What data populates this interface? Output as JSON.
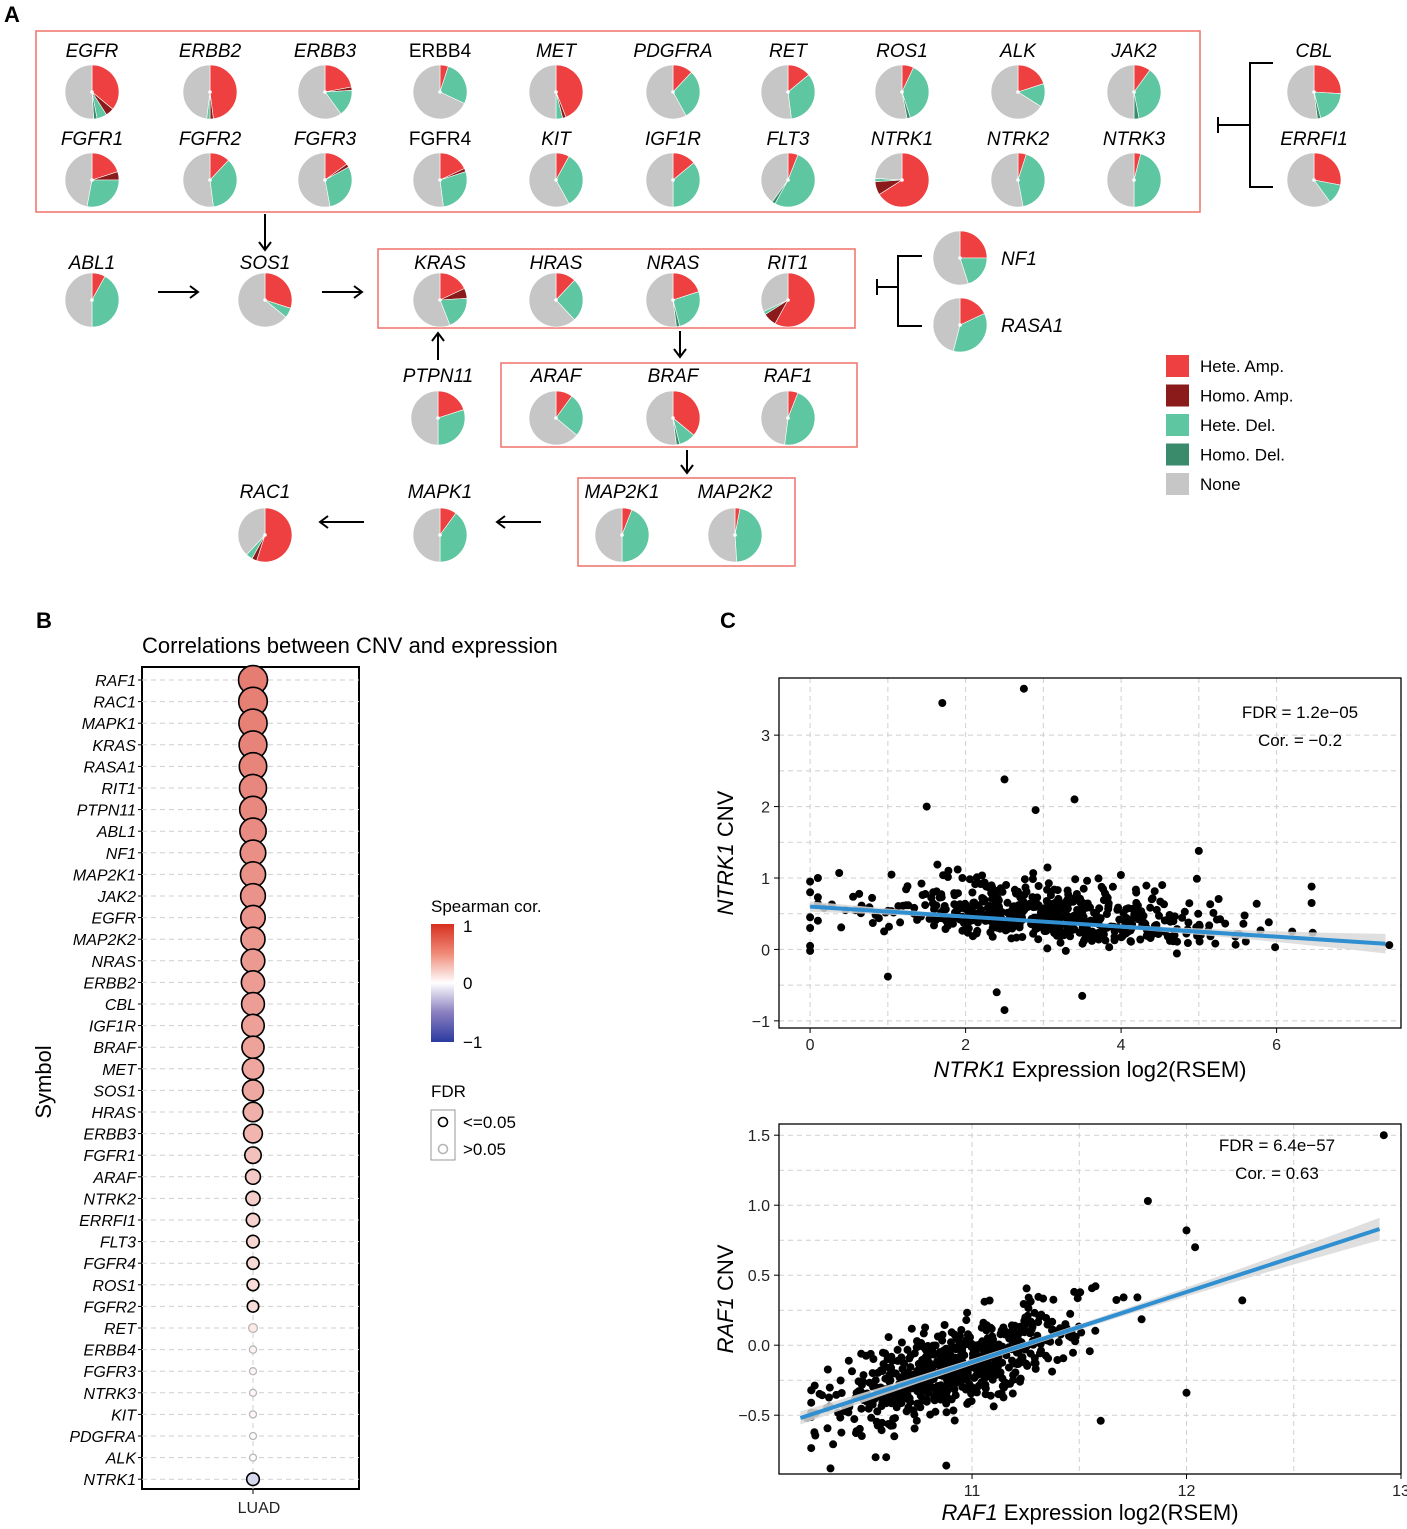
{
  "panels": {
    "a": "A",
    "b": "B",
    "c": "C"
  },
  "colors": {
    "hete_amp": "#ee4040",
    "homo_amp": "#8b1a1a",
    "hete_del": "#5fc6a2",
    "homo_del": "#3a8a6c",
    "none": "#c6c6c6",
    "box": "#f07a72",
    "reg_line": "#2f8fd1",
    "reg_band": "#d9d9d9"
  },
  "pie_legend": [
    {
      "key": "hete_amp",
      "label": "Hete. Amp."
    },
    {
      "key": "homo_amp",
      "label": "Homo. Amp."
    },
    {
      "key": "hete_del",
      "label": "Hete. Del."
    },
    {
      "key": "homo_del",
      "label": "Homo. Del."
    },
    {
      "key": "none",
      "label": "None"
    }
  ],
  "genes": [
    {
      "name": "EGFR",
      "italic": true,
      "fractions": [
        0.36,
        0.05,
        0.06,
        0.02,
        0.51
      ]
    },
    {
      "name": "ERBB2",
      "italic": true,
      "fractions": [
        0.48,
        0.02,
        0.02,
        0.0,
        0.48
      ]
    },
    {
      "name": "ERBB3",
      "italic": true,
      "fractions": [
        0.22,
        0.02,
        0.16,
        0.0,
        0.6
      ]
    },
    {
      "name": "ERBB4",
      "italic": false,
      "fractions": [
        0.05,
        0.0,
        0.27,
        0.0,
        0.68
      ]
    },
    {
      "name": "MET",
      "italic": true,
      "fractions": [
        0.44,
        0.02,
        0.04,
        0.0,
        0.5
      ]
    },
    {
      "name": "PDGFRA",
      "italic": true,
      "fractions": [
        0.12,
        0.0,
        0.3,
        0.0,
        0.58
      ]
    },
    {
      "name": "RET",
      "italic": true,
      "fractions": [
        0.14,
        0.0,
        0.34,
        0.0,
        0.52
      ]
    },
    {
      "name": "ROS1",
      "italic": true,
      "fractions": [
        0.07,
        0.0,
        0.38,
        0.02,
        0.53
      ]
    },
    {
      "name": "ALK",
      "italic": true,
      "fractions": [
        0.2,
        0.0,
        0.14,
        0.0,
        0.66
      ]
    },
    {
      "name": "JAK2",
      "italic": true,
      "fractions": [
        0.1,
        0.0,
        0.37,
        0.03,
        0.5
      ]
    },
    {
      "name": "FGFR1",
      "italic": true,
      "fractions": [
        0.2,
        0.05,
        0.28,
        0.0,
        0.47
      ]
    },
    {
      "name": "FGFR2",
      "italic": true,
      "fractions": [
        0.12,
        0.0,
        0.36,
        0.0,
        0.52
      ]
    },
    {
      "name": "FGFR3",
      "italic": true,
      "fractions": [
        0.15,
        0.02,
        0.3,
        0.0,
        0.53
      ]
    },
    {
      "name": "FGFR4",
      "italic": false,
      "fractions": [
        0.18,
        0.02,
        0.28,
        0.0,
        0.52
      ]
    },
    {
      "name": "KIT",
      "italic": true,
      "fractions": [
        0.08,
        0.0,
        0.34,
        0.0,
        0.58
      ]
    },
    {
      "name": "IGF1R",
      "italic": true,
      "fractions": [
        0.14,
        0.0,
        0.36,
        0.0,
        0.5
      ]
    },
    {
      "name": "FLT3",
      "italic": true,
      "fractions": [
        0.06,
        0.0,
        0.52,
        0.02,
        0.4
      ]
    },
    {
      "name": "NTRK1",
      "italic": true,
      "fractions": [
        0.66,
        0.08,
        0.02,
        0.0,
        0.24
      ]
    },
    {
      "name": "NTRK2",
      "italic": true,
      "fractions": [
        0.05,
        0.0,
        0.42,
        0.0,
        0.53
      ]
    },
    {
      "name": "NTRK3",
      "italic": true,
      "fractions": [
        0.04,
        0.0,
        0.46,
        0.0,
        0.5
      ]
    },
    {
      "name": "CBL",
      "italic": true,
      "fractions": [
        0.26,
        0.0,
        0.2,
        0.02,
        0.52
      ]
    },
    {
      "name": "ERRFI1",
      "italic": true,
      "fractions": [
        0.28,
        0.0,
        0.12,
        0.0,
        0.6
      ]
    },
    {
      "name": "ABL1",
      "italic": true,
      "fractions": [
        0.08,
        0.0,
        0.42,
        0.0,
        0.5
      ]
    },
    {
      "name": "SOS1",
      "italic": true,
      "fractions": [
        0.3,
        0.0,
        0.06,
        0.0,
        0.64
      ]
    },
    {
      "name": "KRAS",
      "italic": true,
      "fractions": [
        0.18,
        0.06,
        0.2,
        0.0,
        0.56
      ]
    },
    {
      "name": "HRAS",
      "italic": true,
      "fractions": [
        0.12,
        0.0,
        0.26,
        0.0,
        0.62
      ]
    },
    {
      "name": "NRAS",
      "italic": true,
      "fractions": [
        0.2,
        0.0,
        0.26,
        0.02,
        0.52
      ]
    },
    {
      "name": "RIT1",
      "italic": true,
      "fractions": [
        0.58,
        0.08,
        0.02,
        0.0,
        0.32
      ]
    },
    {
      "name": "NF1",
      "italic": true,
      "fractions": [
        0.25,
        0.0,
        0.2,
        0.0,
        0.55
      ]
    },
    {
      "name": "RASA1",
      "italic": true,
      "fractions": [
        0.18,
        0.0,
        0.36,
        0.0,
        0.46
      ]
    },
    {
      "name": "PTPN11",
      "italic": true,
      "fractions": [
        0.2,
        0.0,
        0.3,
        0.0,
        0.5
      ]
    },
    {
      "name": "ARAF",
      "italic": true,
      "fractions": [
        0.1,
        0.0,
        0.26,
        0.0,
        0.64
      ]
    },
    {
      "name": "BRAF",
      "italic": true,
      "fractions": [
        0.36,
        0.0,
        0.1,
        0.02,
        0.52
      ]
    },
    {
      "name": "RAF1",
      "italic": true,
      "fractions": [
        0.06,
        0.0,
        0.46,
        0.0,
        0.48
      ]
    },
    {
      "name": "MAP2K1",
      "italic": true,
      "fractions": [
        0.06,
        0.0,
        0.44,
        0.0,
        0.5
      ]
    },
    {
      "name": "MAP2K2",
      "italic": true,
      "fractions": [
        0.03,
        0.0,
        0.46,
        0.0,
        0.51
      ]
    },
    {
      "name": "MAPK1",
      "italic": true,
      "fractions": [
        0.1,
        0.0,
        0.4,
        0.0,
        0.5
      ]
    },
    {
      "name": "RAC1",
      "italic": true,
      "fractions": [
        0.55,
        0.03,
        0.04,
        0.0,
        0.38
      ]
    }
  ],
  "chart_data": [
    {
      "type": "scatter",
      "subtype": "bubble",
      "title": "Correlations between CNV and expression",
      "ylabel": "Symbol",
      "xlabel": "",
      "x_categories": [
        "LUAD"
      ],
      "symbols": [
        "RAF1",
        "RAC1",
        "MAPK1",
        "KRAS",
        "RASA1",
        "RIT1",
        "PTPN11",
        "ABL1",
        "NF1",
        "MAP2K1",
        "JAK2",
        "EGFR",
        "MAP2K2",
        "NRAS",
        "ERBB2",
        "CBL",
        "IGF1R",
        "BRAF",
        "MET",
        "SOS1",
        "HRAS",
        "ERBB3",
        "FGFR1",
        "ARAF",
        "NTRK2",
        "ERRFI1",
        "FLT3",
        "FGFR4",
        "ROS1",
        "FGFR2",
        "RET",
        "ERBB4",
        "FGFR3",
        "NTRK3",
        "KIT",
        "PDGFRA",
        "ALK",
        "NTRK1"
      ],
      "spearman_cor": [
        0.63,
        0.62,
        0.61,
        0.6,
        0.59,
        0.58,
        0.57,
        0.56,
        0.54,
        0.53,
        0.52,
        0.51,
        0.5,
        0.49,
        0.48,
        0.47,
        0.46,
        0.45,
        0.43,
        0.42,
        0.38,
        0.36,
        0.3,
        0.26,
        0.24,
        0.22,
        0.2,
        0.19,
        0.18,
        0.17,
        0.1,
        0.06,
        0.05,
        0.04,
        0.03,
        0.02,
        0.01,
        -0.2
      ],
      "fdr_significant": [
        true,
        true,
        true,
        true,
        true,
        true,
        true,
        true,
        true,
        true,
        true,
        true,
        true,
        true,
        true,
        true,
        true,
        true,
        true,
        true,
        true,
        true,
        true,
        true,
        true,
        true,
        true,
        true,
        true,
        true,
        false,
        false,
        false,
        false,
        false,
        false,
        false,
        true
      ],
      "colorbar": {
        "title": "Spearman cor.",
        "ticks": [
          "1",
          "0",
          "−1"
        ],
        "range": [
          -1,
          1
        ]
      },
      "size_legend": {
        "title": "FDR",
        "items": [
          "<=0.05",
          ">0.05"
        ]
      }
    },
    {
      "type": "scatter",
      "xlabel_gene": "NTRK1",
      "xlabel_rest": " Expression log2(RSEM)",
      "ylabel_gene": "NTRK1",
      "ylabel_rest": " CNV",
      "xlim": [
        -0.4,
        7.6
      ],
      "ylim": [
        -1.1,
        3.8
      ],
      "xticks": [
        "0",
        "2",
        "4",
        "6"
      ],
      "yticks": [
        "−1",
        "0",
        "1",
        "2",
        "3"
      ],
      "annotation": [
        "FDR = 1.2e−05",
        "Cor. = −0.2"
      ],
      "regression": {
        "x0": 0,
        "y0": 0.6,
        "x1": 7.4,
        "y1": 0.08
      },
      "highlight_points": [
        [
          1.7,
          3.45
        ],
        [
          2.75,
          3.65
        ],
        [
          2.5,
          2.38
        ],
        [
          3.4,
          2.1
        ],
        [
          1.5,
          2.0
        ],
        [
          2.9,
          1.95
        ],
        [
          5.0,
          1.38
        ],
        [
          6.45,
          0.88
        ],
        [
          6.45,
          0.65
        ],
        [
          0.0,
          0.95
        ],
        [
          0.0,
          0.8
        ],
        [
          0.0,
          0.45
        ],
        [
          0.0,
          0.3
        ],
        [
          0.0,
          0.05
        ],
        [
          0.0,
          -0.02
        ],
        [
          7.45,
          0.06
        ],
        [
          2.5,
          -0.85
        ],
        [
          2.4,
          -0.6
        ],
        [
          1.0,
          -0.38
        ],
        [
          3.5,
          -0.65
        ],
        [
          5.9,
          0.38
        ],
        [
          6.2,
          0.25
        ]
      ]
    },
    {
      "type": "scatter",
      "xlabel_gene": "RAF1",
      "xlabel_rest": " Expression log2(RSEM)",
      "ylabel_gene": "RAF1",
      "ylabel_rest": " CNV",
      "xlim": [
        10.1,
        13.0
      ],
      "ylim": [
        -0.92,
        1.58
      ],
      "xticks": [
        "11",
        "12",
        "13"
      ],
      "yticks": [
        "−0.5",
        "0.0",
        "0.5",
        "1.0",
        "1.5"
      ],
      "annotation": [
        "FDR = 6.4e−57",
        "Cor. = 0.63"
      ],
      "regression": {
        "x0": 10.2,
        "y0": -0.52,
        "x1": 12.9,
        "y1": 0.83
      },
      "highlight_points": [
        [
          12.92,
          1.5
        ],
        [
          11.82,
          1.03
        ],
        [
          12.0,
          0.82
        ],
        [
          12.04,
          0.7
        ],
        [
          12.26,
          0.32
        ],
        [
          12.0,
          -0.34
        ],
        [
          11.6,
          -0.54
        ],
        [
          10.34,
          -0.88
        ],
        [
          10.88,
          -0.86
        ],
        [
          10.23,
          -0.52
        ],
        [
          10.6,
          -0.8
        ]
      ]
    }
  ]
}
